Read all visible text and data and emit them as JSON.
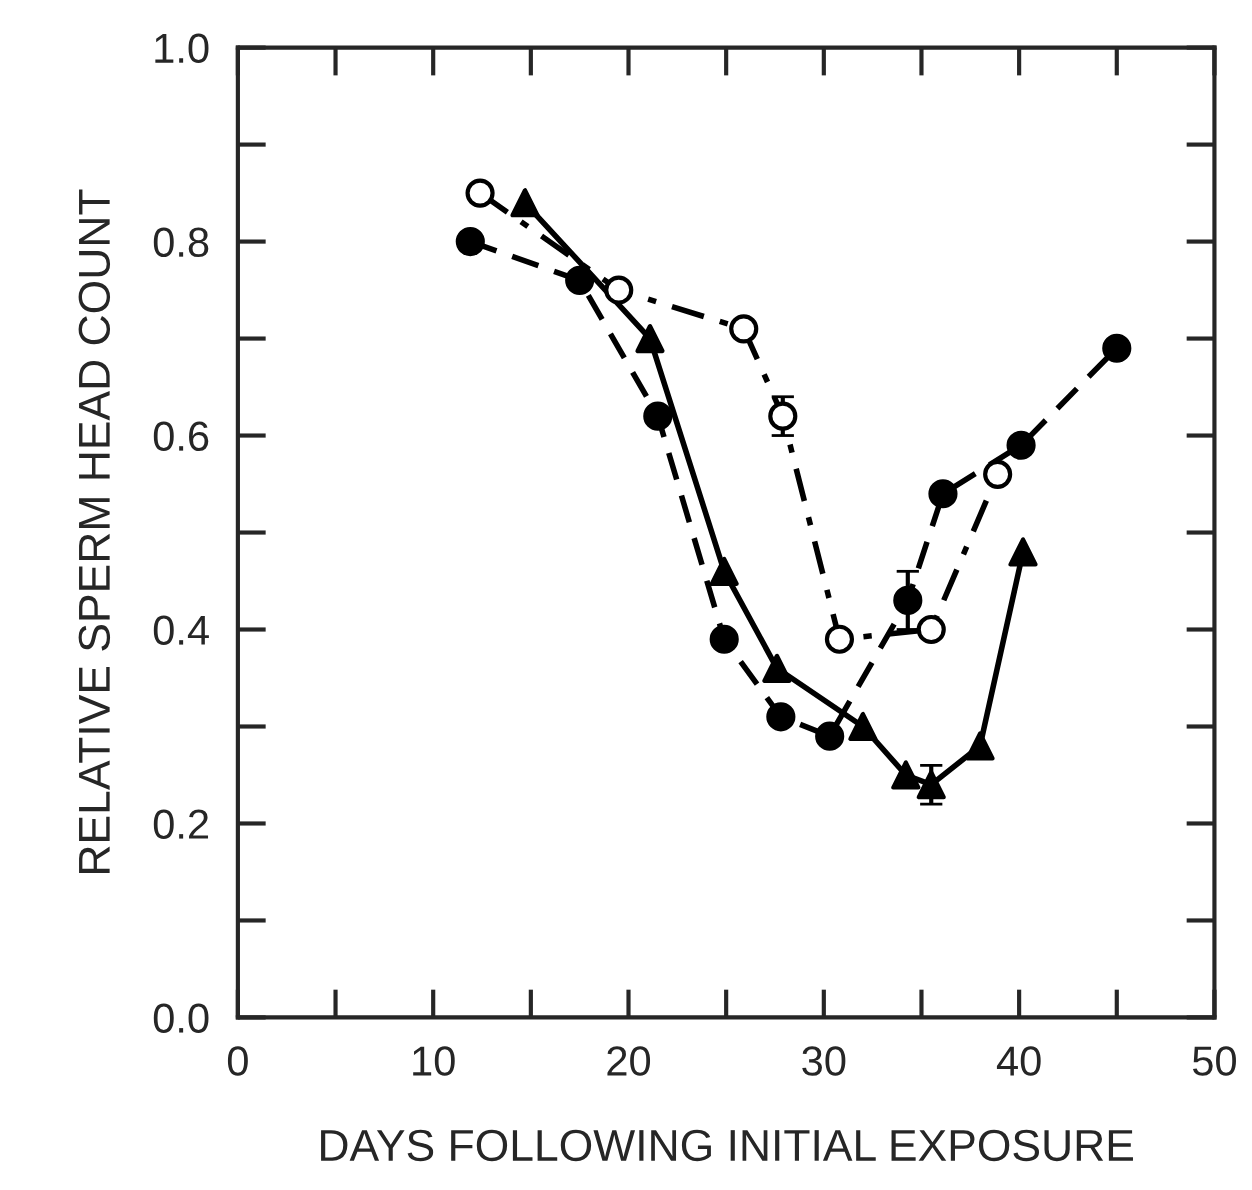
{
  "chart_data": {
    "type": "line",
    "xlabel": "DAYS FOLLOWING INITIAL EXPOSURE",
    "ylabel": "RELATIVE SPERM HEAD COUNT",
    "xlim": [
      0,
      50
    ],
    "ylim": [
      0.0,
      1.0
    ],
    "xticks": [
      0,
      {
        "value": 5,
        "label": null
      },
      10,
      {
        "value": 15,
        "label": null
      },
      20,
      {
        "value": 25,
        "label": null
      },
      30,
      {
        "value": 35,
        "label": null
      },
      40,
      {
        "value": 45,
        "label": null
      },
      50
    ],
    "yticks": [
      {
        "value": 0.0,
        "label": "0.0"
      },
      {
        "value": 0.1,
        "label": null
      },
      {
        "value": 0.2,
        "label": "0.2"
      },
      {
        "value": 0.3,
        "label": null
      },
      {
        "value": 0.4,
        "label": "0.4"
      },
      {
        "value": 0.5,
        "label": null
      },
      {
        "value": 0.6,
        "label": "0.6"
      },
      {
        "value": 0.7,
        "label": null
      },
      {
        "value": 0.8,
        "label": "0.8"
      },
      {
        "value": 0.9,
        "label": null
      },
      {
        "value": 1.0,
        "label": "1.0"
      }
    ],
    "grid": false,
    "legend": false,
    "series": [
      {
        "color": "#000000",
        "marker": "circle",
        "line_style": "dashed",
        "x": [
          11.9,
          17.5,
          21.5,
          24.9,
          27.8,
          30.3,
          34.3,
          36.1,
          40.1,
          45.0
        ],
        "values": [
          0.8,
          0.76,
          0.62,
          0.39,
          0.31,
          0.29,
          0.43,
          0.54,
          0.59,
          0.69
        ],
        "errors": [
          null,
          null,
          null,
          null,
          null,
          null,
          0.03,
          null,
          null,
          null
        ]
      },
      {
        "color": "#000000",
        "marker": "circle",
        "colors": [
          "#ffffff",
          "#ffffff",
          "#ffffff",
          "#ffffff",
          "#ffffff",
          "#ffffff",
          "#ffffff"
        ],
        "line_style": "dashdot",
        "x": [
          12.4,
          19.5,
          25.9,
          27.9,
          30.8,
          35.5,
          38.9
        ],
        "values": [
          0.85,
          0.75,
          0.71,
          0.62,
          0.39,
          0.4,
          0.56
        ],
        "errors": [
          null,
          null,
          null,
          0.02,
          null,
          null,
          null
        ]
      },
      {
        "color": "#000000",
        "marker": "triangle",
        "line_style": "solid",
        "x": [
          14.7,
          21.1,
          24.9,
          27.6,
          32.0,
          34.2,
          35.5,
          38.0,
          40.2
        ],
        "values": [
          0.84,
          0.7,
          0.46,
          0.36,
          0.3,
          0.25,
          0.24,
          0.28,
          0.48
        ],
        "errors": [
          null,
          null,
          null,
          null,
          null,
          null,
          0.02,
          null,
          null
        ]
      }
    ]
  }
}
